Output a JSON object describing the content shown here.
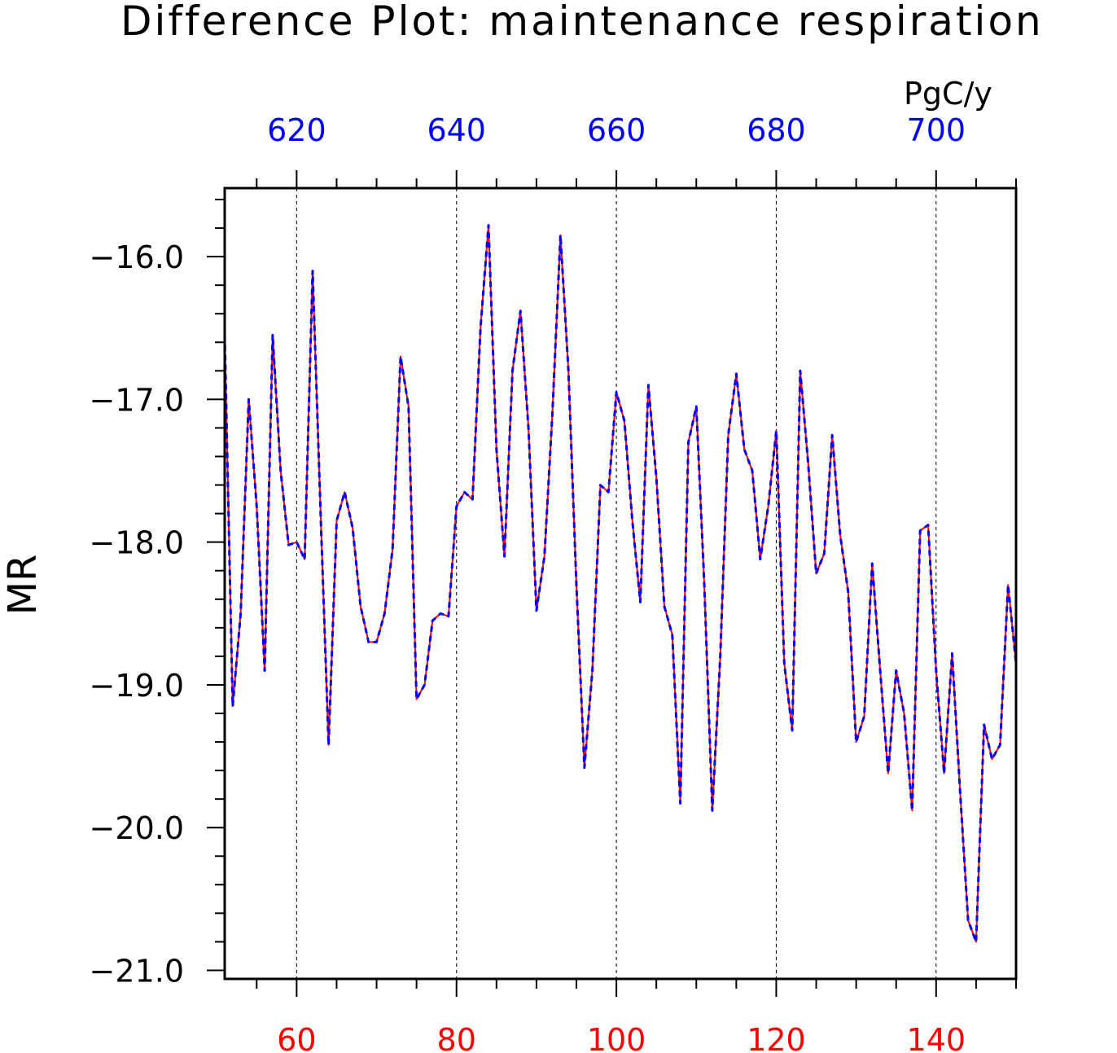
{
  "chart_data": {
    "type": "line",
    "title": "Difference Plot: maintenance respiration",
    "ylabel": "MR",
    "units": "PgC/y",
    "xlim": [
      51,
      150
    ],
    "ylim": [
      -21.06,
      -15.52
    ],
    "x_ticks": [
      60,
      80,
      100,
      120,
      140
    ],
    "x_top_ticks": [
      620,
      640,
      660,
      680,
      700
    ],
    "x_top_offset": 560,
    "y_ticks": [
      -16.0,
      -17.0,
      -18.0,
      -19.0,
      -20.0,
      -21.0
    ],
    "y_tick_labels": [
      "−16.0",
      "−17.0",
      "−18.0",
      "−19.0",
      "−20.0",
      "−21.0"
    ],
    "grid": "vertical dashed at major x ticks",
    "colors": {
      "series_1": "#ff0000",
      "series_2": "#0000ff",
      "bottom_axis": "#ff0000",
      "top_axis": "#0000ff"
    },
    "x": [
      51,
      52,
      53,
      54,
      55,
      56,
      57,
      58,
      59,
      60,
      61,
      62,
      63,
      64,
      65,
      66,
      67,
      68,
      69,
      70,
      71,
      72,
      73,
      74,
      75,
      76,
      77,
      78,
      79,
      80,
      81,
      82,
      83,
      84,
      85,
      86,
      87,
      88,
      89,
      90,
      91,
      92,
      93,
      94,
      95,
      96,
      97,
      98,
      99,
      100,
      101,
      102,
      103,
      104,
      105,
      106,
      107,
      108,
      109,
      110,
      111,
      112,
      113,
      114,
      115,
      116,
      117,
      118,
      119,
      120,
      121,
      122,
      123,
      124,
      125,
      126,
      127,
      128,
      129,
      130,
      131,
      132,
      133,
      134,
      135,
      136,
      137,
      138,
      139,
      140,
      141,
      142,
      143,
      144,
      145,
      146,
      147,
      148,
      149,
      150
    ],
    "series": [
      {
        "values": [
          -16.55,
          -19.15,
          -18.5,
          -17.0,
          -17.75,
          -18.9,
          -16.55,
          -17.5,
          -18.02,
          -18.0,
          -18.12,
          -16.1,
          -17.8,
          -19.42,
          -17.85,
          -17.65,
          -17.9,
          -18.45,
          -18.7,
          -18.7,
          -18.5,
          -18.05,
          -16.7,
          -17.05,
          -19.1,
          -19.0,
          -18.55,
          -18.5,
          -18.52,
          -17.75,
          -17.65,
          -17.7,
          -16.5,
          -15.78,
          -17.35,
          -18.1,
          -16.8,
          -16.38,
          -17.2,
          -18.48,
          -18.1,
          -17.1,
          -15.85,
          -16.8,
          -18.3,
          -19.58,
          -18.9,
          -17.6,
          -17.65,
          -16.95,
          -17.15,
          -17.85,
          -18.42,
          -16.9,
          -17.55,
          -18.45,
          -18.65,
          -19.83,
          -17.3,
          -17.05,
          -18.3,
          -19.88,
          -18.8,
          -17.25,
          -16.82,
          -17.35,
          -17.5,
          -18.12,
          -17.75,
          -17.22,
          -18.85,
          -19.32,
          -16.8,
          -17.45,
          -18.22,
          -18.08,
          -17.25,
          -17.95,
          -18.35,
          -19.4,
          -19.22,
          -18.15,
          -18.9,
          -19.62,
          -18.9,
          -19.2,
          -19.88,
          -17.92,
          -17.88,
          -18.9,
          -19.62,
          -18.78,
          -19.75,
          -20.65,
          -20.8,
          -19.28,
          -19.52,
          -19.42,
          -18.3,
          -18.85
        ]
      },
      {
        "values": [
          -16.55,
          -19.15,
          -18.5,
          -17.0,
          -17.75,
          -18.9,
          -16.55,
          -17.5,
          -18.02,
          -18.0,
          -18.12,
          -16.1,
          -17.8,
          -19.42,
          -17.85,
          -17.65,
          -17.9,
          -18.45,
          -18.7,
          -18.7,
          -18.5,
          -18.05,
          -16.7,
          -17.05,
          -19.1,
          -19.0,
          -18.55,
          -18.5,
          -18.52,
          -17.75,
          -17.65,
          -17.7,
          -16.5,
          -15.78,
          -17.35,
          -18.1,
          -16.8,
          -16.38,
          -17.2,
          -18.48,
          -18.1,
          -17.1,
          -15.85,
          -16.8,
          -18.3,
          -19.58,
          -18.9,
          -17.6,
          -17.65,
          -16.95,
          -17.15,
          -17.85,
          -18.42,
          -16.9,
          -17.55,
          -18.45,
          -18.65,
          -19.83,
          -17.3,
          -17.05,
          -18.3,
          -19.88,
          -18.8,
          -17.25,
          -16.82,
          -17.35,
          -17.5,
          -18.12,
          -17.75,
          -17.22,
          -18.85,
          -19.32,
          -16.8,
          -17.45,
          -18.22,
          -18.08,
          -17.25,
          -17.95,
          -18.35,
          -19.4,
          -19.22,
          -18.15,
          -18.9,
          -19.62,
          -18.9,
          -19.2,
          -19.88,
          -17.92,
          -17.88,
          -18.9,
          -19.62,
          -18.78,
          -19.75,
          -20.65,
          -20.8,
          -19.28,
          -19.52,
          -19.42,
          -18.3,
          -18.85
        ]
      }
    ]
  }
}
